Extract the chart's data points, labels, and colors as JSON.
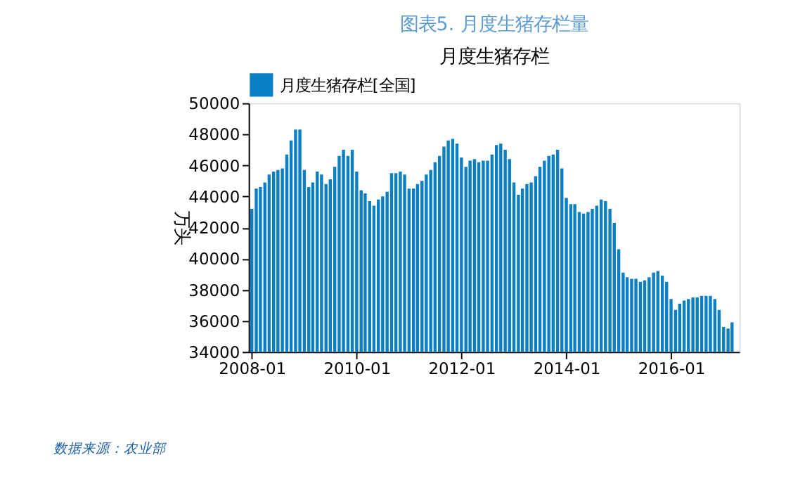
{
  "chart_data": {
    "type": "bar",
    "title": "图表5.  月度生猪存栏量",
    "subtitle": "月度生猪存栏",
    "ylabel": "万头",
    "x": [
      "2008-01",
      "2008-02",
      "2008-03",
      "2008-04",
      "2008-05",
      "2008-06",
      "2008-07",
      "2008-08",
      "2008-09",
      "2008-10",
      "2008-11",
      "2008-12",
      "2009-01",
      "2009-02",
      "2009-03",
      "2009-04",
      "2009-05",
      "2009-06",
      "2009-07",
      "2009-08",
      "2009-09",
      "2009-10",
      "2009-11",
      "2009-12",
      "2010-01",
      "2010-02",
      "2010-03",
      "2010-04",
      "2010-05",
      "2010-06",
      "2010-07",
      "2010-08",
      "2010-09",
      "2010-10",
      "2010-11",
      "2010-12",
      "2011-01",
      "2011-02",
      "2011-03",
      "2011-04",
      "2011-05",
      "2011-06",
      "2011-07",
      "2011-08",
      "2011-09",
      "2011-10",
      "2011-11",
      "2011-12",
      "2012-01",
      "2012-02",
      "2012-03",
      "2012-04",
      "2012-05",
      "2012-06",
      "2012-07",
      "2012-08",
      "2012-09",
      "2012-10",
      "2012-11",
      "2012-12",
      "2013-01",
      "2013-02",
      "2013-03",
      "2013-04",
      "2013-05",
      "2013-06",
      "2013-07",
      "2013-08",
      "2013-09",
      "2013-10",
      "2013-11",
      "2013-12",
      "2014-01",
      "2014-02",
      "2014-03",
      "2014-04",
      "2014-05",
      "2014-06",
      "2014-07",
      "2014-08",
      "2014-09",
      "2014-10",
      "2014-11",
      "2014-12",
      "2015-01",
      "2015-02",
      "2015-03",
      "2015-04",
      "2015-05",
      "2015-06",
      "2015-07",
      "2015-08",
      "2015-09",
      "2015-10",
      "2015-11",
      "2015-12",
      "2016-01",
      "2016-02",
      "2016-03",
      "2016-04",
      "2016-05",
      "2016-06",
      "2016-07",
      "2016-08",
      "2016-09",
      "2016-10",
      "2016-11",
      "2016-12",
      "2017-01",
      "2017-02",
      "2017-03"
    ],
    "series": [
      {
        "name": "月度生猪存栏[全国]",
        "color": "#0a7fc4",
        "values": [
          43200,
          44500,
          44600,
          44900,
          45400,
          45600,
          45700,
          45800,
          46700,
          47600,
          48300,
          48300,
          45700,
          44600,
          44900,
          45600,
          45400,
          44800,
          45100,
          45900,
          46600,
          47000,
          46600,
          47000,
          45600,
          44400,
          44200,
          43700,
          43400,
          43800,
          44000,
          44300,
          45500,
          45500,
          45600,
          45400,
          44500,
          44500,
          44800,
          45000,
          45400,
          45700,
          46200,
          46600,
          47200,
          47600,
          47700,
          47400,
          46500,
          45900,
          46300,
          46400,
          46200,
          46300,
          46300,
          46700,
          47300,
          47400,
          47000,
          46400,
          44900,
          44100,
          44500,
          44800,
          44900,
          45300,
          45900,
          46300,
          46600,
          46700,
          47000,
          45800,
          43900,
          43500,
          43500,
          43000,
          42900,
          43000,
          43200,
          43400,
          43800,
          43700,
          43200,
          42300,
          40600,
          39100,
          38800,
          38700,
          38700,
          38500,
          38600,
          38800,
          39100,
          39200,
          38900,
          38500,
          37400,
          36700,
          37100,
          37300,
          37400,
          37500,
          37500,
          37600,
          37600,
          37600,
          37400,
          36700,
          35600,
          35500,
          35900
        ]
      }
    ],
    "xlim": [
      "2007-12-10",
      "2017-04-20"
    ],
    "xticks": [
      "2008-01",
      "2010-01",
      "2012-01",
      "2014-01",
      "2016-01"
    ],
    "ylim": [
      34000,
      50000
    ],
    "yticks": [
      34000,
      36000,
      38000,
      40000,
      42000,
      44000,
      46000,
      48000,
      50000
    ],
    "grid": false,
    "legend": "top left",
    "annotations": [
      "数据来源：农业部"
    ]
  }
}
